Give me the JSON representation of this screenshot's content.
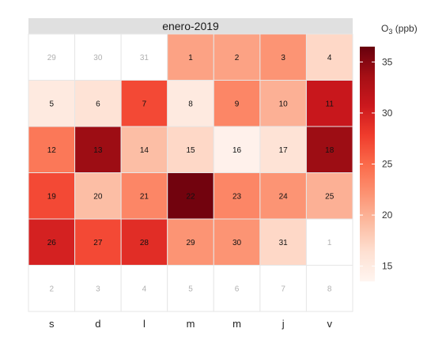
{
  "chart_data": {
    "type": "heatmap",
    "title": "enero-2019",
    "legend_title": "O₃ (ppb)",
    "legend_title_main": "O",
    "legend_title_sub": "3",
    "legend_title_unit": " (ppb)",
    "legend_ticks": [
      15,
      20,
      25,
      30,
      35
    ],
    "legend_range": [
      13.5,
      36.5
    ],
    "legend_placement": "right",
    "grid": false,
    "weekdays": [
      "s",
      "d",
      "l",
      "m",
      "m",
      "j",
      "v"
    ],
    "cells": [
      [
        {
          "label": "29",
          "value": null
        },
        {
          "label": "30",
          "value": null
        },
        {
          "label": "31",
          "value": null
        },
        {
          "label": "1",
          "value": 21
        },
        {
          "label": "2",
          "value": 21
        },
        {
          "label": "3",
          "value": 22
        },
        {
          "label": "4",
          "value": 17
        }
      ],
      [
        {
          "label": "5",
          "value": 15
        },
        {
          "label": "6",
          "value": 16
        },
        {
          "label": "7",
          "value": 27
        },
        {
          "label": "8",
          "value": 15
        },
        {
          "label": "9",
          "value": 23
        },
        {
          "label": "10",
          "value": 20
        },
        {
          "label": "11",
          "value": 31
        }
      ],
      [
        {
          "label": "12",
          "value": 24
        },
        {
          "label": "13",
          "value": 34
        },
        {
          "label": "14",
          "value": 19
        },
        {
          "label": "15",
          "value": 17
        },
        {
          "label": "16",
          "value": 14
        },
        {
          "label": "17",
          "value": 16
        },
        {
          "label": "18",
          "value": 34
        }
      ],
      [
        {
          "label": "19",
          "value": 27
        },
        {
          "label": "20",
          "value": 19
        },
        {
          "label": "21",
          "value": 23
        },
        {
          "label": "22",
          "value": 36
        },
        {
          "label": "23",
          "value": 23
        },
        {
          "label": "24",
          "value": 22
        },
        {
          "label": "25",
          "value": 20
        }
      ],
      [
        {
          "label": "26",
          "value": 30
        },
        {
          "label": "27",
          "value": 27
        },
        {
          "label": "28",
          "value": 29
        },
        {
          "label": "29",
          "value": 22
        },
        {
          "label": "30",
          "value": 22
        },
        {
          "label": "31",
          "value": 17
        },
        {
          "label": "1",
          "value": null
        }
      ],
      [
        {
          "label": "2",
          "value": null
        },
        {
          "label": "3",
          "value": null
        },
        {
          "label": "4",
          "value": null
        },
        {
          "label": "5",
          "value": null
        },
        {
          "label": "6",
          "value": null
        },
        {
          "label": "7",
          "value": null
        },
        {
          "label": "8",
          "value": null
        }
      ]
    ]
  }
}
